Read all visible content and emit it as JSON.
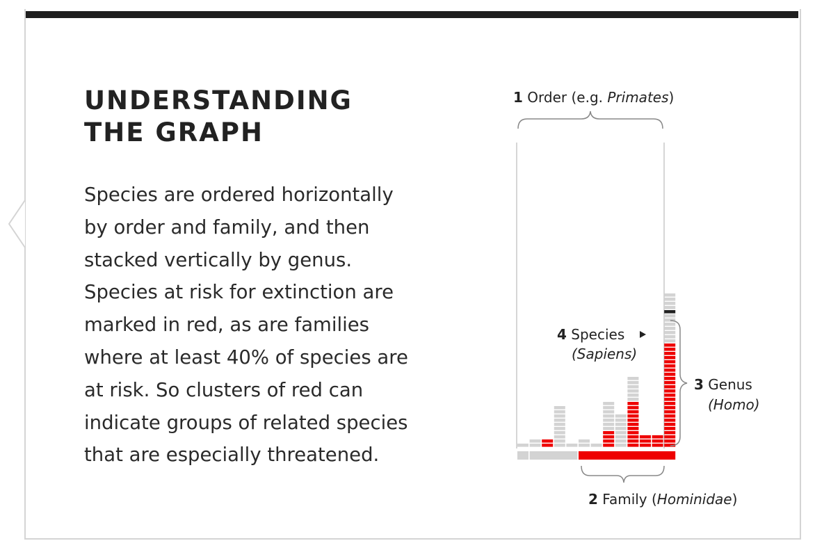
{
  "panel": {
    "title_line1": "UNDERSTANDING",
    "title_line2": "THE GRAPH",
    "body_lines": [
      "Species are ordered horizontally",
      "by order and family, and then",
      "stacked vertically by genus.",
      "Species at risk for extinction are",
      "marked in red, as are families",
      "where at least 40% of species are",
      "at risk. So clusters of red can",
      "indicate groups of related species",
      "that are especially threatened."
    ]
  },
  "legend": {
    "order": {
      "num": "1",
      "label": "Order (e.g. ",
      "example": "Primates",
      "close": ")"
    },
    "family": {
      "num": "2",
      "label": "Family (",
      "example": "Hominidae",
      "close": ")"
    },
    "genus": {
      "num": "3",
      "label": "Genus",
      "example": "(Homo)"
    },
    "species": {
      "num": "4",
      "label": "Species",
      "example": "(Sapiens)"
    }
  },
  "colors": {
    "at_risk": "#ee0000",
    "not_at_risk": "#d3d3d3",
    "highlight": "#222222",
    "bracket": "#888888"
  },
  "columns": [
    {
      "genus_species": 1,
      "at_risk": 0
    },
    {
      "genus_species": 2,
      "at_risk": 0
    },
    {
      "genus_species": 2,
      "at_risk": 2
    },
    {
      "genus_species": 10,
      "at_risk": 0
    },
    {
      "genus_species": 1,
      "at_risk": 0
    },
    {
      "genus_species": 2,
      "at_risk": 0
    },
    {
      "genus_species": 1,
      "at_risk": 0
    },
    {
      "genus_species": 11,
      "at_risk": 4
    },
    {
      "genus_species": 8,
      "at_risk": 0
    },
    {
      "genus_species": 17,
      "at_risk": 11
    },
    {
      "genus_species": 3,
      "at_risk": 3
    },
    {
      "genus_species": 3,
      "at_risk": 3
    },
    {
      "genus_species": 37,
      "at_risk": 25
    }
  ],
  "families": [
    {
      "columns": 1,
      "at_risk_family": false
    },
    {
      "columns": 4,
      "at_risk_family": false
    },
    {
      "columns": 8,
      "at_risk_family": true
    }
  ],
  "highlighted_species": {
    "column": 12,
    "row": 32
  }
}
